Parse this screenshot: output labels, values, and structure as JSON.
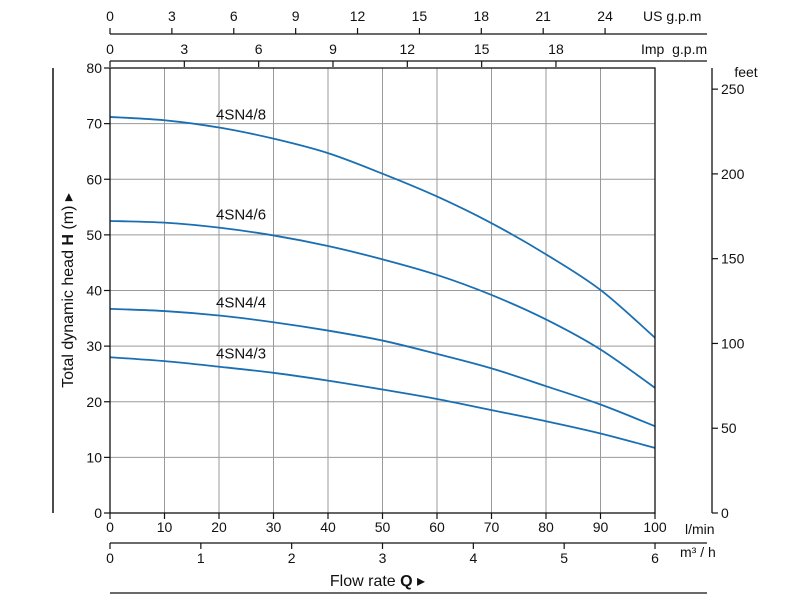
{
  "chart_data": {
    "type": "line",
    "title": "",
    "xlabel": "Flow rate",
    "xlabel_symbol": "Q",
    "ylabel": "Total dynamic head",
    "ylabel_symbol": "H",
    "ylabel_unit": "(m)",
    "xlim": [
      0,
      100
    ],
    "ylim": [
      0,
      80
    ],
    "grid": true,
    "x": [
      0,
      10,
      20,
      30,
      40,
      50,
      60,
      70,
      80,
      90,
      100
    ],
    "series": [
      {
        "name": "4SN4/8",
        "values": [
          71.2,
          70.6,
          69.3,
          67.3,
          64.7,
          61.0,
          56.9,
          52.1,
          46.5,
          40.1,
          31.5
        ]
      },
      {
        "name": "4SN4/6",
        "values": [
          52.5,
          52.2,
          51.3,
          49.9,
          48.0,
          45.6,
          42.8,
          39.2,
          34.8,
          29.4,
          22.5
        ]
      },
      {
        "name": "4SN4/4",
        "values": [
          36.7,
          36.3,
          35.5,
          34.3,
          32.8,
          31.0,
          28.6,
          26.0,
          22.8,
          19.5,
          15.6
        ]
      },
      {
        "name": "4SN4/3",
        "values": [
          28.0,
          27.3,
          26.3,
          25.2,
          23.8,
          22.2,
          20.5,
          18.5,
          16.5,
          14.3,
          11.7
        ]
      }
    ],
    "x_unit": "l/min",
    "x_ticks": [
      "0",
      "10",
      "20",
      "30",
      "40",
      "50",
      "60",
      "70",
      "80",
      "90",
      "100"
    ],
    "y_ticks": [
      "0",
      "10",
      "20",
      "30",
      "40",
      "50",
      "60",
      "70",
      "80"
    ],
    "axes": {
      "us_gpm": {
        "unit": "US g.p.m",
        "ticks": [
          0,
          3,
          6,
          9,
          12,
          15,
          18,
          21,
          24
        ],
        "lpm_per_unit": 3.785
      },
      "imp_gpm": {
        "unit": "Imp  g.p.m",
        "ticks": [
          0,
          3,
          6,
          9,
          12,
          15,
          18
        ],
        "lpm_per_unit": 4.546
      },
      "m3h": {
        "unit": "m³ / h",
        "ticks": [
          0,
          1,
          2,
          3,
          4,
          5,
          6
        ],
        "lpm_per_unit": 16.667
      },
      "feet": {
        "unit": "feet",
        "ticks": [
          0,
          50,
          100,
          150,
          200,
          250
        ],
        "m_per_unit": 0.3048
      }
    },
    "colors": {
      "curve": "#1a6fb3",
      "grid": "#9a9a9a",
      "axis": "#111111"
    }
  }
}
